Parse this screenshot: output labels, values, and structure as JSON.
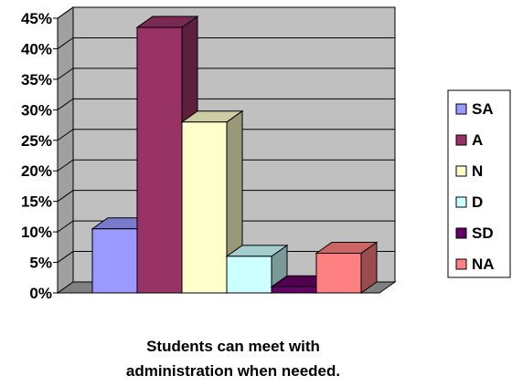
{
  "chart_data": {
    "type": "bar",
    "style": "3d-column",
    "categories": [
      "SA",
      "A",
      "N",
      "D",
      "SD",
      "NA"
    ],
    "values": [
      10.5,
      43.5,
      28,
      6,
      1,
      6.5
    ],
    "value_unit": "%",
    "colors": [
      "#9999FF",
      "#993366",
      "#FFFFCC",
      "#CCFFFF",
      "#660066",
      "#FF8080"
    ],
    "xlabel_lines": [
      "Students can meet with",
      "administration when needed."
    ],
    "ylabel": "",
    "ylim": [
      0,
      45
    ],
    "y_ticks": [
      "0%",
      "5%",
      "10%",
      "15%",
      "20%",
      "25%",
      "30%",
      "35%",
      "40%",
      "45%"
    ],
    "grid": true,
    "legend_position": "right",
    "legend_entries": [
      "SA",
      "A",
      "N",
      "D",
      "SD",
      "NA"
    ],
    "wall_color": "#C0C0C0",
    "floor_color": "#808080"
  }
}
